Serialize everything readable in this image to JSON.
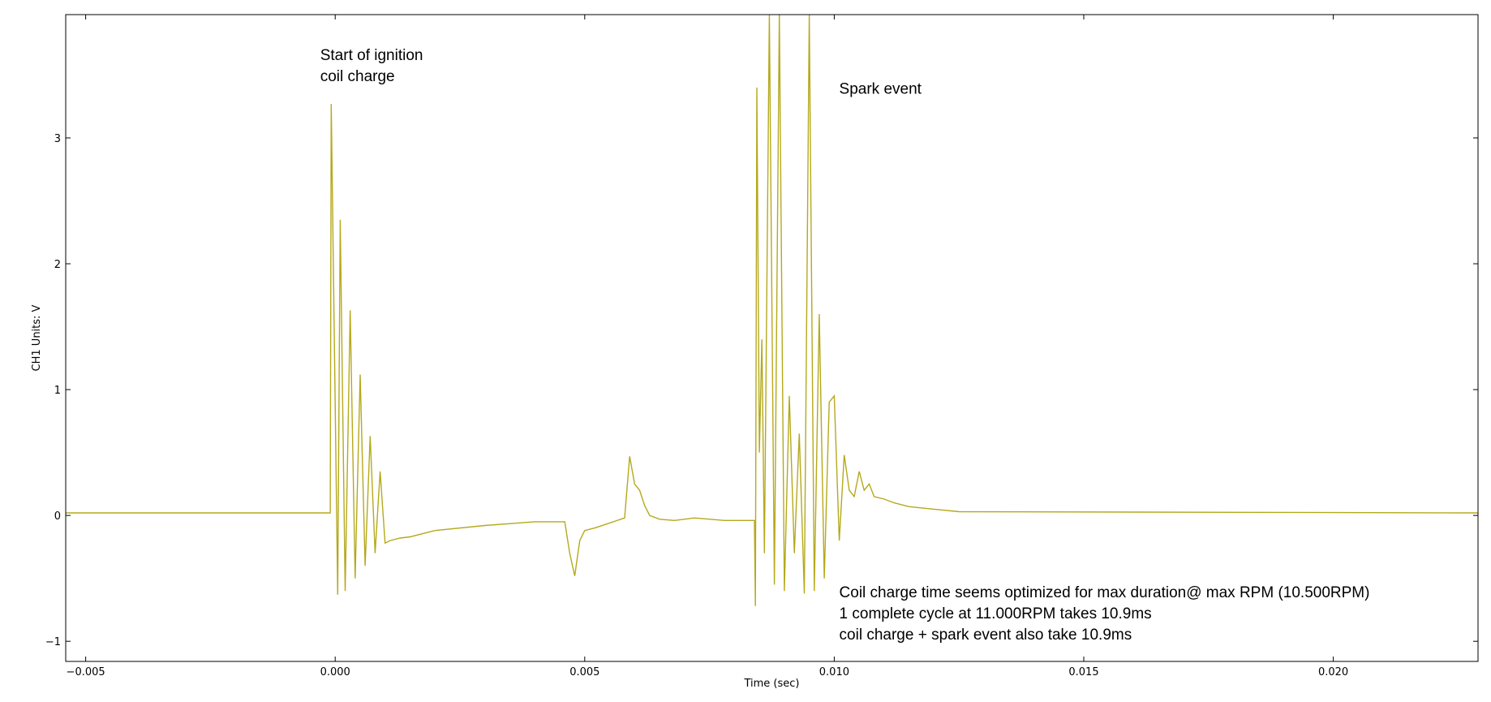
{
  "chart_data": {
    "type": "line",
    "title": "",
    "xlabel": "Time (sec)",
    "ylabel": "CH1 Units: V",
    "xlim": [
      -0.0054,
      0.0229
    ],
    "ylim": [
      -1.16,
      3.98
    ],
    "x_ticks": [
      -0.005,
      0.0,
      0.005,
      0.01,
      0.015,
      0.02
    ],
    "x_tick_labels": [
      "−0.005",
      "0.000",
      "0.005",
      "0.010",
      "0.015",
      "0.020"
    ],
    "y_ticks": [
      -1,
      0,
      1,
      2,
      3
    ],
    "y_tick_labels": [
      "−1",
      "0",
      "1",
      "2",
      "3"
    ],
    "grid": false,
    "line_color": "#b5a91c",
    "series": [
      {
        "x": [
          -0.0054,
          -0.0001,
          -8e-05,
          5e-05,
          0.0001,
          0.0002,
          0.0003,
          0.0004,
          0.0005,
          0.0006,
          0.0007,
          0.0008,
          0.0009,
          0.001,
          0.0011,
          0.0013,
          0.0015,
          0.002,
          0.003,
          0.004,
          0.0046,
          0.0047,
          0.0048,
          0.0049,
          0.005,
          0.0052,
          0.0055,
          0.0058,
          0.0059,
          0.006,
          0.0061,
          0.0062,
          0.0063,
          0.0065,
          0.0068,
          0.0072,
          0.0078,
          0.0084,
          0.00842,
          0.00845,
          0.0085,
          0.00855,
          0.0086,
          0.0087,
          0.0088,
          0.0089,
          0.009,
          0.0091,
          0.0092,
          0.0093,
          0.0094,
          0.0095,
          0.0096,
          0.0097,
          0.0098,
          0.0099,
          0.01,
          0.0101,
          0.0102,
          0.0103,
          0.0104,
          0.0105,
          0.0106,
          0.0107,
          0.0108,
          0.011,
          0.0112,
          0.0115,
          0.012,
          0.0125,
          0.0229
        ],
        "y": [
          0.02,
          0.02,
          3.27,
          -0.63,
          2.35,
          -0.6,
          1.63,
          -0.5,
          1.12,
          -0.4,
          0.63,
          -0.3,
          0.35,
          -0.22,
          -0.2,
          -0.18,
          -0.17,
          -0.12,
          -0.08,
          -0.05,
          -0.05,
          -0.3,
          -0.48,
          -0.2,
          -0.12,
          -0.1,
          -0.06,
          -0.02,
          0.47,
          0.25,
          0.2,
          0.08,
          0.0,
          -0.03,
          -0.04,
          -0.02,
          -0.04,
          -0.04,
          -0.72,
          3.4,
          0.5,
          1.4,
          -0.3,
          3.98,
          -0.55,
          3.98,
          -0.6,
          0.95,
          -0.3,
          0.65,
          -0.62,
          3.98,
          -0.6,
          1.6,
          -0.5,
          0.9,
          0.95,
          -0.2,
          0.48,
          0.2,
          0.15,
          0.35,
          0.2,
          0.25,
          0.15,
          0.13,
          0.1,
          0.07,
          0.05,
          0.03,
          0.02
        ]
      }
    ],
    "annotations": [
      {
        "lines": [
          "Start of ignition",
          "coil charge"
        ],
        "x": -0.0003,
        "y": 3.62
      },
      {
        "lines": [
          "Spark event"
        ],
        "x": 0.0101,
        "y": 3.35
      },
      {
        "lines": [
          "Coil charge time  seems optimized for max duration@ max RPM (10.500RPM)",
          "1 complete cycle at 11.000RPM takes 10.9ms",
          "coil charge + spark event also take 10.9ms"
        ],
        "x": 0.0101,
        "y": -0.65
      }
    ]
  }
}
